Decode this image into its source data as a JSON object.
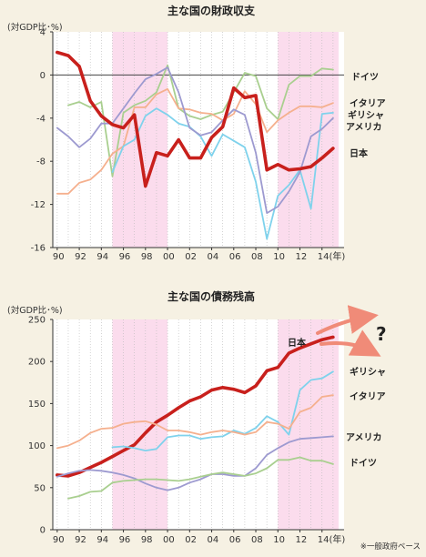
{
  "colors": {
    "japan": "#c8201c",
    "germany": "#a9cf8f",
    "italy": "#f5b08e",
    "greece": "#7fd2ec",
    "usa": "#9d9ad0",
    "shade": "#fbdced",
    "background": "#f6f1e3",
    "arrow": "#f08b78",
    "question": "#e0281f"
  },
  "note": "※一般政府ベース",
  "chart_data": [
    {
      "type": "line",
      "title": "主な国の財政収支",
      "unit_label": "(対GDP比･%)",
      "ylim": [
        -16,
        4
      ],
      "yticks": [
        4,
        0,
        -4,
        -8,
        -12,
        -16
      ],
      "xlim": [
        1989.6,
        2016.0
      ],
      "xticks": [
        {
          "x": 1990,
          "label": "90"
        },
        {
          "x": 1992,
          "label": "92"
        },
        {
          "x": 1994,
          "label": "94"
        },
        {
          "x": 1996,
          "label": "96"
        },
        {
          "x": 1998,
          "label": "98"
        },
        {
          "x": 2000,
          "label": "00"
        },
        {
          "x": 2002,
          "label": "02"
        },
        {
          "x": 2004,
          "label": "04"
        },
        {
          "x": 2006,
          "label": "06"
        },
        {
          "x": 2008,
          "label": "08"
        },
        {
          "x": 2010,
          "label": "10"
        },
        {
          "x": 2012,
          "label": "12"
        },
        {
          "x": 2014,
          "label": "14(年)"
        }
      ],
      "shaded_ranges": [
        [
          1995,
          2000
        ],
        [
          2010,
          2015.5
        ]
      ],
      "grid": "vertical dotted",
      "series": [
        {
          "name": "ドイツ",
          "color_key": "germany",
          "x": [
            1991,
            1992,
            1993,
            1994,
            1995,
            1996,
            1997,
            1998,
            1999,
            2000,
            2001,
            2002,
            2003,
            2004,
            2005,
            2006,
            2007,
            2008,
            2009,
            2010,
            2011,
            2012,
            2013,
            2014,
            2015
          ],
          "values": [
            -2.8,
            -2.5,
            -3.0,
            -2.5,
            -9.4,
            -3.5,
            -2.8,
            -2.4,
            -1.6,
            0.9,
            -3.1,
            -3.8,
            -4.1,
            -3.7,
            -3.4,
            -1.6,
            0.2,
            -0.1,
            -3.1,
            -4.1,
            -0.9,
            -0.1,
            -0.1,
            0.6,
            0.5
          ]
        },
        {
          "name": "イタリア",
          "color_key": "italy",
          "x": [
            1990,
            1991,
            1992,
            1993,
            1994,
            1995,
            1996,
            1997,
            1998,
            1999,
            2000,
            2001,
            2002,
            2003,
            2004,
            2005,
            2006,
            2007,
            2008,
            2009,
            2010,
            2011,
            2012,
            2013,
            2014,
            2015
          ],
          "values": [
            -11.0,
            -11.0,
            -10.0,
            -9.7,
            -8.8,
            -7.3,
            -6.6,
            -3.0,
            -3.0,
            -1.8,
            -1.3,
            -3.1,
            -3.2,
            -3.5,
            -3.6,
            -4.2,
            -3.6,
            -1.5,
            -2.7,
            -5.3,
            -4.2,
            -3.5,
            -2.9,
            -2.9,
            -3.0,
            -2.6
          ]
        },
        {
          "name": "ギリシャ",
          "color_key": "greece",
          "x": [
            1995,
            1996,
            1997,
            1998,
            1999,
            2000,
            2001,
            2002,
            2003,
            2004,
            2005,
            2006,
            2007,
            2008,
            2009,
            2010,
            2011,
            2012,
            2013,
            2014,
            2015
          ],
          "values": [
            -9.0,
            -6.6,
            -6.0,
            -3.8,
            -3.1,
            -3.7,
            -4.5,
            -4.8,
            -5.7,
            -7.5,
            -5.5,
            -6.1,
            -6.7,
            -9.9,
            -15.2,
            -11.2,
            -10.2,
            -8.8,
            -12.4,
            -3.6,
            -3.5
          ]
        },
        {
          "name": "アメリカ",
          "color_key": "usa",
          "x": [
            1990,
            1991,
            1992,
            1993,
            1994,
            1995,
            1996,
            1997,
            1998,
            1999,
            2000,
            2001,
            2002,
            2003,
            2004,
            2005,
            2006,
            2007,
            2008,
            2009,
            2010,
            2011,
            2012,
            2013,
            2014,
            2015
          ],
          "values": [
            -4.9,
            -5.7,
            -6.7,
            -5.9,
            -4.5,
            -4.5,
            -3.1,
            -1.7,
            -0.4,
            0.1,
            0.7,
            -1.6,
            -4.9,
            -5.6,
            -5.3,
            -4.2,
            -3.2,
            -3.7,
            -7.2,
            -12.8,
            -12.2,
            -10.8,
            -9.0,
            -5.7,
            -5.0,
            -4.0
          ]
        },
        {
          "name": "日本",
          "color_key": "japan",
          "bold": true,
          "x": [
            1990,
            1991,
            1992,
            1993,
            1994,
            1995,
            1996,
            1997,
            1998,
            1999,
            2000,
            2001,
            2002,
            2003,
            2004,
            2005,
            2006,
            2007,
            2008,
            2009,
            2010,
            2011,
            2012,
            2013,
            2014,
            2015
          ],
          "values": [
            2.1,
            1.8,
            0.8,
            -2.4,
            -3.8,
            -4.6,
            -4.9,
            -3.7,
            -10.3,
            -7.2,
            -7.5,
            -6.0,
            -7.7,
            -7.7,
            -5.8,
            -4.8,
            -1.2,
            -2.1,
            -1.9,
            -8.8,
            -8.3,
            -8.8,
            -8.7,
            -8.5,
            -7.7,
            -6.8
          ]
        }
      ],
      "labels": {
        "germany": "ドイツ",
        "italy": "イタリア",
        "greece": "ギリシャ",
        "usa": "アメリカ",
        "japan": "日本"
      }
    },
    {
      "type": "line",
      "title": "主な国の債務残高",
      "unit_label": "(対GDP比･%)",
      "ylim": [
        0,
        250
      ],
      "yticks": [
        250,
        200,
        150,
        100,
        50,
        0
      ],
      "xlim": [
        1989.6,
        2016.0
      ],
      "xticks": [
        {
          "x": 1990,
          "label": "90"
        },
        {
          "x": 1992,
          "label": "92"
        },
        {
          "x": 1994,
          "label": "94"
        },
        {
          "x": 1996,
          "label": "96"
        },
        {
          "x": 1998,
          "label": "98"
        },
        {
          "x": 2000,
          "label": "00"
        },
        {
          "x": 2002,
          "label": "02"
        },
        {
          "x": 2004,
          "label": "04"
        },
        {
          "x": 2006,
          "label": "06"
        },
        {
          "x": 2008,
          "label": "08"
        },
        {
          "x": 2010,
          "label": "10"
        },
        {
          "x": 2012,
          "label": "12"
        },
        {
          "x": 2014,
          "label": "14(年)"
        }
      ],
      "shaded_ranges": [
        [
          1995,
          2000
        ],
        [
          2010,
          2015.5
        ]
      ],
      "grid": "vertical dotted",
      "series": [
        {
          "name": "日本",
          "color_key": "japan",
          "bold": true,
          "x": [
            1990,
            1991,
            1992,
            1993,
            1994,
            1995,
            1996,
            1997,
            1998,
            1999,
            2000,
            2001,
            2002,
            2003,
            2004,
            2005,
            2006,
            2007,
            2008,
            2009,
            2010,
            2011,
            2012,
            2013,
            2014,
            2015
          ],
          "values": [
            65,
            64,
            68,
            74,
            80,
            87,
            94,
            101,
            115,
            128,
            136,
            145,
            153,
            158,
            166,
            169,
            167,
            163,
            171,
            189,
            193,
            210,
            216,
            221,
            226,
            229
          ]
        },
        {
          "name": "ギリシャ",
          "color_key": "greece",
          "x": [
            1995,
            1996,
            1997,
            1998,
            1999,
            2000,
            2001,
            2002,
            2003,
            2004,
            2005,
            2006,
            2007,
            2008,
            2009,
            2010,
            2011,
            2012,
            2013,
            2014,
            2015
          ],
          "values": [
            98,
            99,
            97,
            94,
            96,
            110,
            112,
            112,
            108,
            110,
            111,
            118,
            114,
            121,
            135,
            128,
            113,
            166,
            178,
            180,
            188
          ]
        },
        {
          "name": "イタリア",
          "color_key": "italy",
          "x": [
            1990,
            1991,
            1992,
            1993,
            1994,
            1995,
            1996,
            1997,
            1998,
            1999,
            2000,
            2001,
            2002,
            2003,
            2004,
            2005,
            2006,
            2007,
            2008,
            2009,
            2010,
            2011,
            2012,
            2013,
            2014,
            2015
          ],
          "values": [
            97,
            100,
            106,
            115,
            120,
            121,
            126,
            128,
            129,
            125,
            118,
            118,
            116,
            113,
            116,
            118,
            116,
            113,
            116,
            128,
            126,
            120,
            140,
            145,
            158,
            160
          ]
        },
        {
          "name": "アメリカ",
          "color_key": "usa",
          "x": [
            1990,
            1991,
            1992,
            1993,
            1994,
            1995,
            1996,
            1997,
            1998,
            1999,
            2000,
            2001,
            2002,
            2003,
            2004,
            2005,
            2006,
            2007,
            2008,
            2009,
            2010,
            2011,
            2012,
            2013,
            2014,
            2015
          ],
          "values": [
            63,
            67,
            70,
            71,
            70,
            68,
            65,
            61,
            55,
            50,
            47,
            50,
            56,
            60,
            66,
            66,
            64,
            64,
            73,
            89,
            97,
            104,
            108,
            109,
            110,
            111
          ]
        },
        {
          "name": "ドイツ",
          "color_key": "germany",
          "x": [
            1991,
            1992,
            1993,
            1994,
            1995,
            1996,
            1997,
            1998,
            1999,
            2000,
            2001,
            2002,
            2003,
            2004,
            2005,
            2006,
            2007,
            2008,
            2009,
            2010,
            2011,
            2012,
            2013,
            2014,
            2015
          ],
          "values": [
            37,
            40,
            45,
            46,
            56,
            58,
            59,
            60,
            60,
            59,
            58,
            60,
            63,
            66,
            68,
            66,
            64,
            67,
            73,
            83,
            83,
            86,
            82,
            82,
            78
          ]
        }
      ],
      "labels": {
        "japan": "日本",
        "greece": "ギリシャ",
        "italy": "イタリア",
        "usa": "アメリカ",
        "germany": "ドイツ"
      },
      "annotation": "?"
    }
  ]
}
